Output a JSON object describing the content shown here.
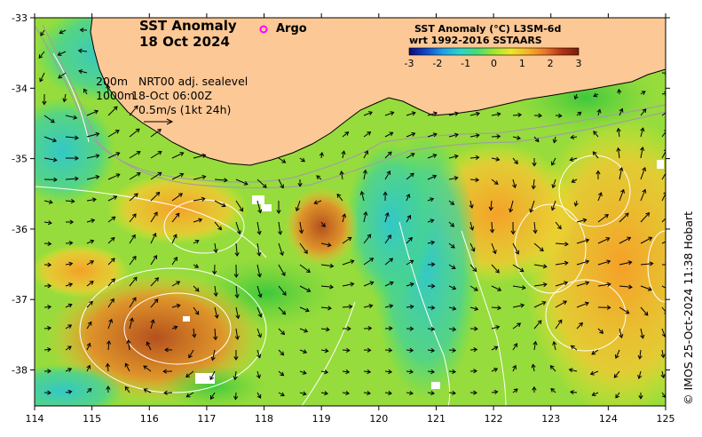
{
  "title": {
    "line1": "SST Anomaly",
    "line2": "18 Oct 2024"
  },
  "argo": {
    "label": "Argo",
    "color": "#ff00ff"
  },
  "info": {
    "depth_200": "200m",
    "depth_1000": "1000m",
    "product": "NRT00 adj. sealevel",
    "time": "18-Oct 06:00Z",
    "vector_scale": "0.5m/s (1kt 24h)"
  },
  "colorbar": {
    "title1": "SST Anomaly (°C) L3SM-6d",
    "title2": "wrt 1992-2016 SSTAARS",
    "ticks": [
      "-3",
      "-2",
      "-1",
      "0",
      "1",
      "2",
      "3"
    ],
    "colors": [
      "#0a0a78",
      "#1246c8",
      "#1ea0e6",
      "#2ed2c8",
      "#46dc78",
      "#a0e632",
      "#f0e628",
      "#f5b428",
      "#eb7828",
      "#b43214",
      "#781e0a"
    ]
  },
  "credit": "© IMOS 25-Oct-2024 11:38 Hobart",
  "axes": {
    "x_ticks": [
      "114",
      "115",
      "116",
      "117",
      "118",
      "119",
      "120",
      "121",
      "122",
      "123",
      "124",
      "125"
    ],
    "y_ticks": [
      "-33",
      "-34",
      "-35",
      "-36",
      "-37",
      "-38"
    ]
  },
  "colors": {
    "land": "#fcc896",
    "coast": "#000000"
  }
}
